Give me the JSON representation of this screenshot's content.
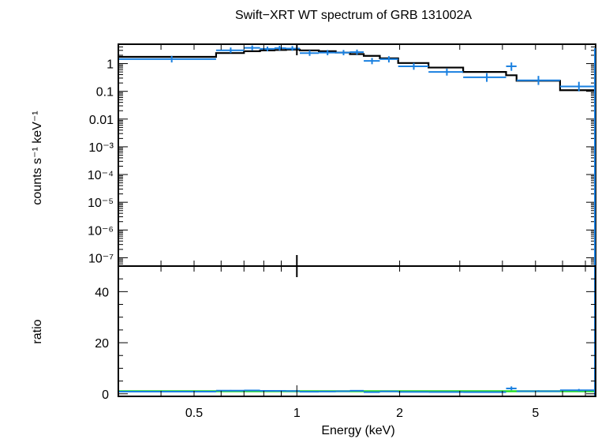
{
  "chart_data": [
    {
      "type": "scatter",
      "title": "Swift−XRT WT spectrum of GRB 131002A",
      "ylabel": "counts s⁻¹ keV⁻¹",
      "xscale": "log",
      "yscale": "log",
      "xlim": [
        0.3,
        7.5
      ],
      "ylim": [
        5e-08,
        5
      ],
      "yticks": [
        {
          "value": 1,
          "label": "1"
        },
        {
          "value": 0.1,
          "label": "0.1"
        },
        {
          "value": 0.01,
          "label": "0.01"
        },
        {
          "value": 0.001,
          "label": "10⁻³"
        },
        {
          "value": 0.0001,
          "label": "10⁻⁴"
        },
        {
          "value": 1e-05,
          "label": "10⁻⁵"
        },
        {
          "value": 1e-06,
          "label": "10⁻⁶"
        },
        {
          "value": 1e-07,
          "label": "10⁻⁷"
        }
      ],
      "series": [
        {
          "kind": "data",
          "color": "#1a80e0",
          "points": [
            {
              "x": 0.43,
              "xlo": 0.3,
              "xhi": 0.58,
              "y": 1.45,
              "ylo": 1.1,
              "yhi": 1.9
            },
            {
              "x": 0.64,
              "xlo": 0.58,
              "xhi": 0.7,
              "y": 3.0,
              "ylo": 2.4,
              "yhi": 3.8
            },
            {
              "x": 0.74,
              "xlo": 0.7,
              "xhi": 0.78,
              "y": 3.7,
              "ylo": 3.0,
              "yhi": 4.5
            },
            {
              "x": 0.82,
              "xlo": 0.78,
              "xhi": 0.86,
              "y": 3.4,
              "ylo": 2.8,
              "yhi": 4.1
            },
            {
              "x": 0.89,
              "xlo": 0.86,
              "xhi": 0.93,
              "y": 3.6,
              "ylo": 3.0,
              "yhi": 4.4
            },
            {
              "x": 0.97,
              "xlo": 0.93,
              "xhi": 1.02,
              "y": 3.5,
              "ylo": 2.9,
              "yhi": 4.3
            },
            {
              "x": 1.09,
              "xlo": 1.02,
              "xhi": 1.16,
              "y": 2.4,
              "ylo": 1.9,
              "yhi": 3.0
            },
            {
              "x": 1.23,
              "xlo": 1.16,
              "xhi": 1.3,
              "y": 2.5,
              "ylo": 2.0,
              "yhi": 3.1
            },
            {
              "x": 1.37,
              "xlo": 1.3,
              "xhi": 1.43,
              "y": 2.5,
              "ylo": 2.0,
              "yhi": 3.1
            },
            {
              "x": 1.5,
              "xlo": 1.43,
              "xhi": 1.57,
              "y": 2.6,
              "ylo": 2.1,
              "yhi": 3.2
            },
            {
              "x": 1.66,
              "xlo": 1.57,
              "xhi": 1.75,
              "y": 1.25,
              "ylo": 0.95,
              "yhi": 1.6
            },
            {
              "x": 1.86,
              "xlo": 1.75,
              "xhi": 1.98,
              "y": 1.45,
              "ylo": 1.1,
              "yhi": 1.85
            },
            {
              "x": 2.2,
              "xlo": 1.98,
              "xhi": 2.43,
              "y": 0.8,
              "ylo": 0.6,
              "yhi": 1.05
            },
            {
              "x": 2.75,
              "xlo": 2.43,
              "xhi": 3.07,
              "y": 0.5,
              "ylo": 0.37,
              "yhi": 0.66
            },
            {
              "x": 3.6,
              "xlo": 3.07,
              "xhi": 4.1,
              "y": 0.32,
              "ylo": 0.22,
              "yhi": 0.45
            },
            {
              "x": 4.25,
              "xlo": 4.1,
              "xhi": 4.4,
              "y": 0.8,
              "ylo": 0.55,
              "yhi": 1.1
            },
            {
              "x": 5.1,
              "xlo": 4.4,
              "xhi": 5.9,
              "y": 0.25,
              "ylo": 0.17,
              "yhi": 0.36
            },
            {
              "x": 6.7,
              "xlo": 5.9,
              "xhi": 7.5,
              "y": 0.15,
              "ylo": 0.1,
              "yhi": 0.22
            }
          ]
        },
        {
          "kind": "model",
          "color": "#000000",
          "step_edges": [
            0.3,
            0.58,
            0.7,
            0.78,
            0.86,
            0.93,
            1.02,
            1.16,
            1.3,
            1.43,
            1.57,
            1.75,
            1.98,
            2.43,
            3.07,
            4.1,
            4.4,
            5.9,
            7.5
          ],
          "values": [
            1.75,
            2.4,
            2.8,
            3.0,
            3.1,
            3.2,
            3.0,
            2.8,
            2.5,
            2.2,
            1.9,
            1.55,
            1.05,
            0.72,
            0.5,
            0.38,
            0.24,
            0.11
          ]
        }
      ]
    },
    {
      "type": "scatter",
      "ylabel": "ratio",
      "xlabel": "Energy (keV)",
      "xscale": "log",
      "xlim": [
        0.3,
        7.5
      ],
      "ylim": [
        -1,
        50
      ],
      "yticks": [
        {
          "value": 0,
          "label": "0"
        },
        {
          "value": 20,
          "label": "20"
        },
        {
          "value": 40,
          "label": "40"
        }
      ],
      "xticks": [
        {
          "value": 0.5,
          "label": "0.5"
        },
        {
          "value": 1,
          "label": "1"
        },
        {
          "value": 2,
          "label": "2"
        },
        {
          "value": 5,
          "label": "5"
        }
      ],
      "reference_line": {
        "y": 1,
        "color": "#22dd22"
      },
      "series": [
        {
          "kind": "data",
          "color": "#1a80e0",
          "points": [
            {
              "x": 0.43,
              "xlo": 0.3,
              "xhi": 0.58,
              "y": 0.85,
              "ylo": 0.6,
              "yhi": 1.1
            },
            {
              "x": 0.64,
              "xlo": 0.58,
              "xhi": 0.7,
              "y": 1.25,
              "ylo": 1.0,
              "yhi": 1.5
            },
            {
              "x": 0.74,
              "xlo": 0.7,
              "xhi": 0.78,
              "y": 1.3,
              "ylo": 1.05,
              "yhi": 1.55
            },
            {
              "x": 0.82,
              "xlo": 0.78,
              "xhi": 0.86,
              "y": 1.15,
              "ylo": 0.9,
              "yhi": 1.4
            },
            {
              "x": 0.89,
              "xlo": 0.86,
              "xhi": 0.93,
              "y": 1.15,
              "ylo": 0.9,
              "yhi": 1.4
            },
            {
              "x": 0.97,
              "xlo": 0.93,
              "xhi": 1.02,
              "y": 1.1,
              "ylo": 0.9,
              "yhi": 1.35
            },
            {
              "x": 1.09,
              "xlo": 1.02,
              "xhi": 1.16,
              "y": 0.8,
              "ylo": 0.6,
              "yhi": 1.0
            },
            {
              "x": 1.23,
              "xlo": 1.16,
              "xhi": 1.3,
              "y": 0.9,
              "ylo": 0.7,
              "yhi": 1.1
            },
            {
              "x": 1.37,
              "xlo": 1.3,
              "xhi": 1.43,
              "y": 1.0,
              "ylo": 0.8,
              "yhi": 1.25
            },
            {
              "x": 1.5,
              "xlo": 1.43,
              "xhi": 1.57,
              "y": 1.2,
              "ylo": 0.95,
              "yhi": 1.45
            },
            {
              "x": 1.66,
              "xlo": 1.57,
              "xhi": 1.75,
              "y": 0.65,
              "ylo": 0.45,
              "yhi": 0.85
            },
            {
              "x": 1.86,
              "xlo": 1.75,
              "xhi": 1.98,
              "y": 0.95,
              "ylo": 0.7,
              "yhi": 1.2
            },
            {
              "x": 2.2,
              "xlo": 1.98,
              "xhi": 2.43,
              "y": 0.75,
              "ylo": 0.55,
              "yhi": 1.0
            },
            {
              "x": 2.75,
              "xlo": 2.43,
              "xhi": 3.07,
              "y": 0.7,
              "ylo": 0.5,
              "yhi": 0.95
            },
            {
              "x": 3.6,
              "xlo": 3.07,
              "xhi": 4.1,
              "y": 0.65,
              "ylo": 0.45,
              "yhi": 0.9
            },
            {
              "x": 4.25,
              "xlo": 4.1,
              "xhi": 4.4,
              "y": 2.1,
              "ylo": 1.4,
              "yhi": 2.9
            },
            {
              "x": 5.1,
              "xlo": 4.4,
              "xhi": 5.9,
              "y": 1.0,
              "ylo": 0.7,
              "yhi": 1.4
            },
            {
              "x": 6.7,
              "xlo": 5.9,
              "xhi": 7.5,
              "y": 1.4,
              "ylo": 0.9,
              "yhi": 1.9
            }
          ]
        }
      ]
    }
  ]
}
